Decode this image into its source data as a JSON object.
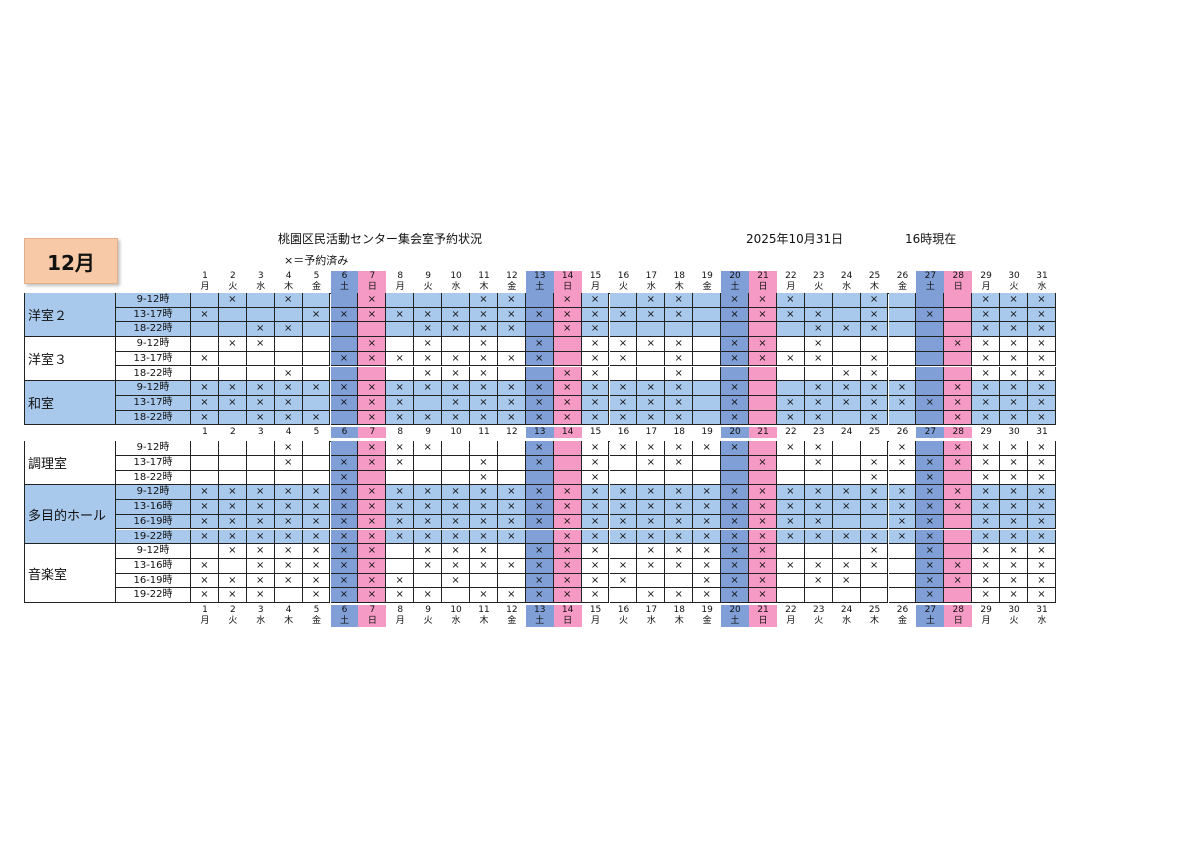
{
  "header": {
    "month": "12月",
    "title": "桃園区民活動センター集会室予約状況",
    "date": "2025年10月31日",
    "time": "16時現在",
    "legend": "×＝予約済み"
  },
  "colors": {
    "blue_band": "#a8c8ec",
    "sat": "#7f9fd6",
    "sun": "#f59ac4",
    "month_badge": "#f7c9a6"
  },
  "days": [
    {
      "d": "1",
      "w": "月"
    },
    {
      "d": "2",
      "w": "火"
    },
    {
      "d": "3",
      "w": "水"
    },
    {
      "d": "4",
      "w": "木"
    },
    {
      "d": "5",
      "w": "金"
    },
    {
      "d": "6",
      "w": "土"
    },
    {
      "d": "7",
      "w": "日"
    },
    {
      "d": "8",
      "w": "月"
    },
    {
      "d": "9",
      "w": "火"
    },
    {
      "d": "10",
      "w": "水"
    },
    {
      "d": "11",
      "w": "木"
    },
    {
      "d": "12",
      "w": "金"
    },
    {
      "d": "13",
      "w": "土"
    },
    {
      "d": "14",
      "w": "日"
    },
    {
      "d": "15",
      "w": "月"
    },
    {
      "d": "16",
      "w": "火"
    },
    {
      "d": "17",
      "w": "水"
    },
    {
      "d": "18",
      "w": "木"
    },
    {
      "d": "19",
      "w": "金"
    },
    {
      "d": "20",
      "w": "土"
    },
    {
      "d": "21",
      "w": "日"
    },
    {
      "d": "22",
      "w": "月"
    },
    {
      "d": "23",
      "w": "火"
    },
    {
      "d": "24",
      "w": "水"
    },
    {
      "d": "25",
      "w": "木"
    },
    {
      "d": "26",
      "w": "金"
    },
    {
      "d": "27",
      "w": "土"
    },
    {
      "d": "28",
      "w": "日"
    },
    {
      "d": "29",
      "w": "月"
    },
    {
      "d": "30",
      "w": "火"
    },
    {
      "d": "31",
      "w": "水"
    }
  ],
  "mark": "×",
  "sections": [
    {
      "rooms": [
        {
          "name": "洋室２",
          "band": true,
          "slots": [
            {
              "time": "9-12時",
              "x": [
                2,
                4,
                7,
                11,
                12,
                14,
                15,
                17,
                18,
                20,
                21,
                22,
                25,
                29,
                30,
                31
              ]
            },
            {
              "time": "13-17時",
              "x": [
                1,
                5,
                6,
                7,
                8,
                9,
                10,
                11,
                12,
                13,
                14,
                15,
                16,
                17,
                18,
                20,
                21,
                22,
                23,
                25,
                27,
                29,
                30,
                31
              ]
            },
            {
              "time": "18-22時",
              "x": [
                3,
                4,
                9,
                10,
                11,
                12,
                14,
                15,
                23,
                24,
                25,
                29,
                30,
                31
              ]
            }
          ]
        },
        {
          "name": "洋室３",
          "band": false,
          "slots": [
            {
              "time": "9-12時",
              "x": [
                2,
                3,
                7,
                9,
                11,
                13,
                15,
                16,
                17,
                18,
                20,
                21,
                23,
                28,
                29,
                30,
                31
              ]
            },
            {
              "time": "13-17時",
              "x": [
                1,
                6,
                7,
                8,
                9,
                10,
                11,
                12,
                13,
                15,
                16,
                18,
                20,
                21,
                22,
                23,
                25,
                29,
                30,
                31
              ]
            },
            {
              "time": "18-22時",
              "x": [
                4,
                9,
                10,
                11,
                14,
                15,
                18,
                24,
                25,
                29,
                30,
                31
              ]
            }
          ]
        },
        {
          "name": "和室",
          "band": true,
          "slots": [
            {
              "time": "9-12時",
              "x": [
                1,
                2,
                3,
                4,
                5,
                6,
                7,
                8,
                9,
                10,
                11,
                12,
                13,
                14,
                15,
                16,
                17,
                18,
                20,
                23,
                24,
                25,
                26,
                28,
                29,
                30,
                31
              ]
            },
            {
              "time": "13-17時",
              "x": [
                1,
                2,
                3,
                4,
                6,
                7,
                8,
                10,
                11,
                12,
                13,
                14,
                15,
                16,
                17,
                18,
                20,
                22,
                23,
                24,
                25,
                26,
                27,
                28,
                29,
                30,
                31
              ]
            },
            {
              "time": "18-22時",
              "x": [
                1,
                3,
                4,
                5,
                7,
                8,
                9,
                10,
                11,
                12,
                13,
                14,
                15,
                16,
                17,
                18,
                20,
                22,
                23,
                25,
                28,
                29,
                30,
                31
              ]
            }
          ]
        }
      ]
    },
    {
      "rooms": [
        {
          "name": "調理室",
          "band": false,
          "slots": [
            {
              "time": "9-12時",
              "x": [
                4,
                7,
                8,
                9,
                13,
                15,
                16,
                17,
                18,
                19,
                20,
                22,
                23,
                26,
                28,
                29,
                30,
                31
              ]
            },
            {
              "time": "13-17時",
              "x": [
                4,
                6,
                7,
                8,
                11,
                13,
                15,
                17,
                18,
                21,
                23,
                25,
                26,
                27,
                28,
                29,
                30,
                31
              ]
            },
            {
              "time": "18-22時",
              "x": [
                6,
                11,
                15,
                25,
                27,
                29,
                30,
                31
              ]
            }
          ]
        },
        {
          "name": "多目的ホール",
          "band": true,
          "slots": [
            {
              "time": "9-12時",
              "x": [
                1,
                2,
                3,
                4,
                5,
                6,
                7,
                8,
                9,
                10,
                11,
                12,
                13,
                14,
                15,
                16,
                17,
                18,
                19,
                20,
                21,
                22,
                23,
                24,
                25,
                26,
                27,
                28,
                29,
                30,
                31
              ]
            },
            {
              "time": "13-16時",
              "x": [
                1,
                2,
                3,
                4,
                5,
                6,
                7,
                8,
                9,
                10,
                11,
                12,
                13,
                14,
                15,
                16,
                17,
                18,
                19,
                20,
                21,
                22,
                23,
                24,
                25,
                26,
                27,
                28,
                29,
                30,
                31
              ]
            },
            {
              "time": "16-19時",
              "x": [
                1,
                2,
                3,
                4,
                5,
                6,
                7,
                8,
                9,
                10,
                11,
                12,
                13,
                14,
                15,
                16,
                17,
                18,
                19,
                20,
                21,
                22,
                23,
                26,
                27,
                29,
                30,
                31
              ]
            },
            {
              "time": "19-22時",
              "x": [
                1,
                2,
                3,
                4,
                5,
                6,
                7,
                8,
                9,
                10,
                11,
                12,
                14,
                15,
                16,
                17,
                18,
                19,
                20,
                21,
                22,
                23,
                24,
                25,
                26,
                27,
                29,
                30,
                31
              ]
            }
          ]
        },
        {
          "name": "音楽室",
          "band": false,
          "slots": [
            {
              "time": "9-12時",
              "x": [
                2,
                3,
                4,
                5,
                6,
                7,
                9,
                10,
                11,
                13,
                14,
                15,
                17,
                18,
                19,
                20,
                21,
                25,
                27,
                29,
                30,
                31
              ]
            },
            {
              "time": "13-16時",
              "x": [
                1,
                3,
                4,
                5,
                6,
                7,
                9,
                10,
                11,
                12,
                13,
                14,
                15,
                16,
                17,
                18,
                19,
                20,
                21,
                22,
                23,
                24,
                25,
                27,
                28,
                29,
                30,
                31
              ]
            },
            {
              "time": "16-19時",
              "x": [
                1,
                2,
                3,
                4,
                5,
                6,
                7,
                8,
                10,
                13,
                14,
                15,
                16,
                19,
                20,
                21,
                23,
                24,
                27,
                28,
                29,
                30,
                31
              ]
            },
            {
              "time": "19-22時",
              "x": [
                1,
                2,
                3,
                5,
                6,
                7,
                8,
                9,
                11,
                12,
                13,
                14,
                15,
                17,
                18,
                19,
                20,
                21,
                27,
                29,
                30,
                31
              ]
            }
          ]
        }
      ]
    }
  ]
}
